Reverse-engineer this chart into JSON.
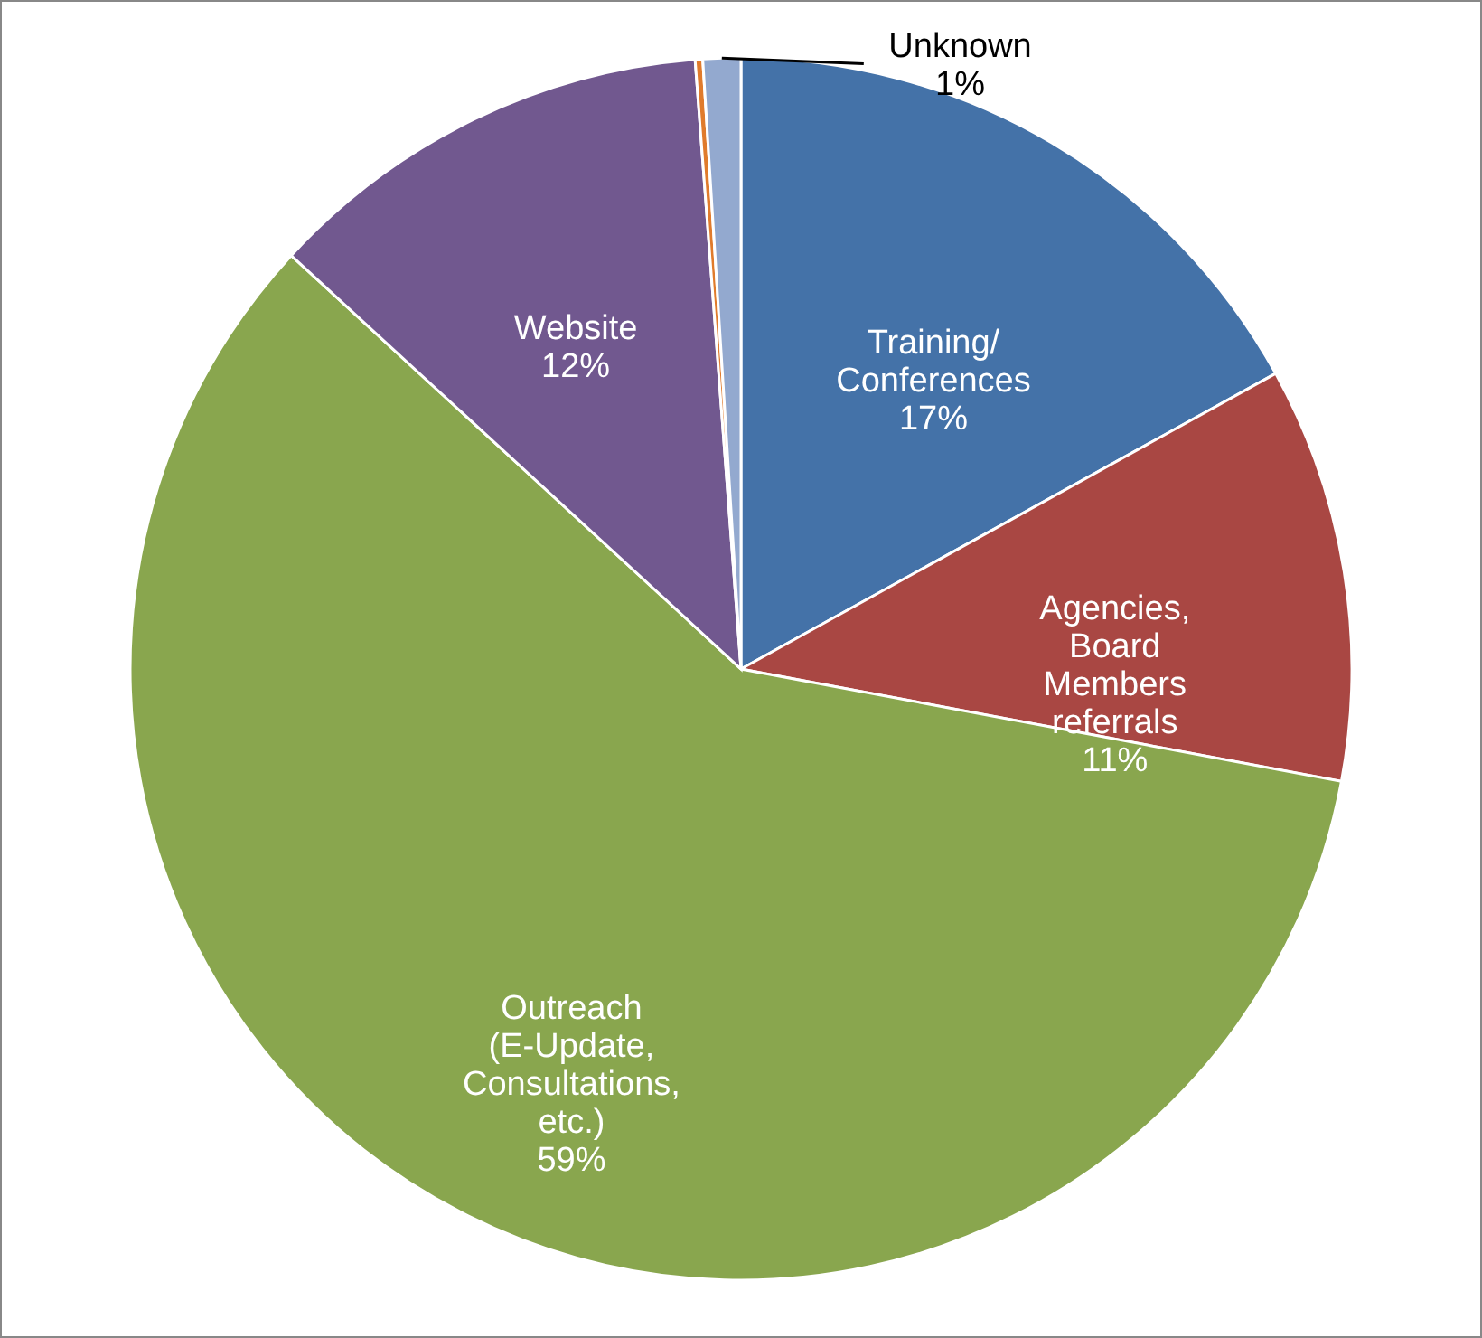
{
  "chart_data": {
    "type": "pie",
    "categories": [
      "Training/ Conferences",
      "Agencies, Board Members referrals",
      "Outreach (E-Update, Consultations, etc.)",
      "Website",
      null,
      "Unknown"
    ],
    "values": [
      17,
      11,
      59,
      12,
      0.2,
      1
    ],
    "value_labels": [
      "17%",
      "11%",
      "59%",
      "12%",
      null,
      "1%"
    ],
    "colors": [
      "#4472a8",
      "#a94743",
      "#89a64e",
      "#71588f",
      "#e07b2c",
      "#93a9cf"
    ]
  }
}
